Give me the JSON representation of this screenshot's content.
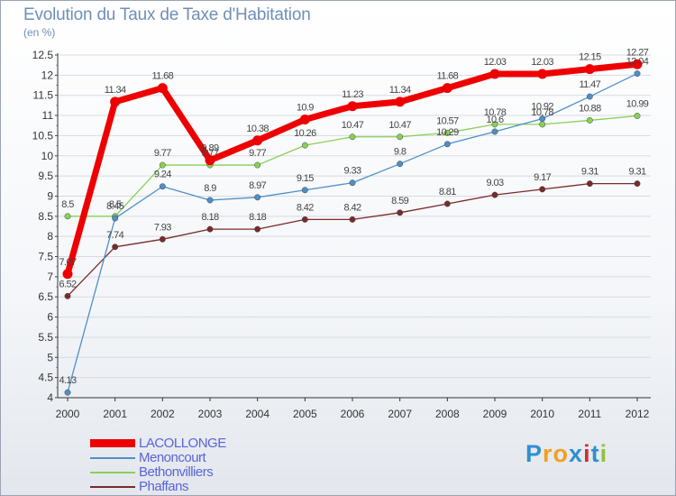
{
  "header": {
    "title": "Evolution du Taux de Taxe d'Habitation",
    "unit": "(en %)"
  },
  "chart_data": {
    "type": "line",
    "title": "Evolution du Taux de Taxe d'Habitation",
    "ylabel": "(en %)",
    "xlabel": "",
    "x": [
      "2000",
      "2001",
      "2002",
      "2003",
      "2004",
      "2005",
      "2006",
      "2007",
      "2008",
      "2009",
      "2010",
      "2011",
      "2012"
    ],
    "ylim": [
      4,
      12.5
    ],
    "yticks": [
      "4",
      "4.5",
      "5",
      "5.5",
      "6",
      "6.5",
      "7",
      "7.5",
      "8",
      "8.5",
      "9",
      "9.5",
      "10",
      "10.5",
      "11",
      "11.5",
      "12",
      "12.5"
    ],
    "grid": "horizontal",
    "legend_position": "bottom-left",
    "series": [
      {
        "name": "LACOLLONGE",
        "color": "#ee0000",
        "values": [
          7.07,
          11.34,
          11.68,
          9.89,
          10.38,
          10.9,
          11.23,
          11.34,
          11.68,
          12.03,
          12.03,
          12.15,
          12.27
        ],
        "labels": [
          "7.07",
          "11.34",
          "11.68",
          "9.89",
          "10.38",
          "10.9",
          "11.23",
          "11.34",
          "11.68",
          "12.03",
          "12.03",
          "12.15",
          "12.27"
        ]
      },
      {
        "name": "Menoncourt",
        "color": "#4f8fc8",
        "values": [
          4.13,
          8.45,
          9.24,
          8.9,
          8.97,
          9.15,
          9.33,
          9.8,
          10.29,
          10.6,
          10.92,
          11.47,
          12.04
        ],
        "labels": [
          "4.13",
          "8.45",
          "9.24",
          "8.9",
          "8.97",
          "9.15",
          "9.33",
          "9.8",
          "10.29",
          "10.6",
          "10.92",
          "11.47",
          "12.04"
        ]
      },
      {
        "name": "Bethonvilliers",
        "color": "#88d056",
        "values": [
          8.5,
          8.5,
          9.77,
          9.77,
          9.77,
          10.26,
          10.47,
          10.47,
          10.57,
          10.78,
          10.78,
          10.88,
          10.99
        ],
        "labels": [
          "8.5",
          "8.5",
          "9.77",
          "9.77",
          "9.77",
          "10.26",
          "10.47",
          "10.47",
          "10.57",
          "10.78",
          "10.78",
          "10.88",
          "10.99"
        ]
      },
      {
        "name": "Phaffans",
        "color": "#7a2a2a",
        "values": [
          6.52,
          7.74,
          7.93,
          8.18,
          8.18,
          8.42,
          8.42,
          8.59,
          8.81,
          9.03,
          9.17,
          9.31,
          9.31
        ],
        "labels": [
          "6.52",
          "7.74",
          "7.93",
          "8.18",
          "8.18",
          "8.42",
          "8.42",
          "8.59",
          "8.81",
          "9.03",
          "9.17",
          "9.31",
          "9.31"
        ]
      }
    ]
  },
  "legend": {
    "items": [
      {
        "label": "LACOLLONGE"
      },
      {
        "label": "Menoncourt"
      },
      {
        "label": "Bethonvilliers"
      },
      {
        "label": "Phaffans"
      }
    ]
  },
  "brand": {
    "text": "Proxiti",
    "letters": [
      "P",
      "r",
      "o",
      "x",
      "i",
      "t",
      "i"
    ],
    "colors": [
      "#2f8fd0",
      "#f0a020",
      "#f0a020",
      "#2f8fd0",
      "#d03030",
      "#2f8fd0",
      "#8cc43c"
    ]
  }
}
